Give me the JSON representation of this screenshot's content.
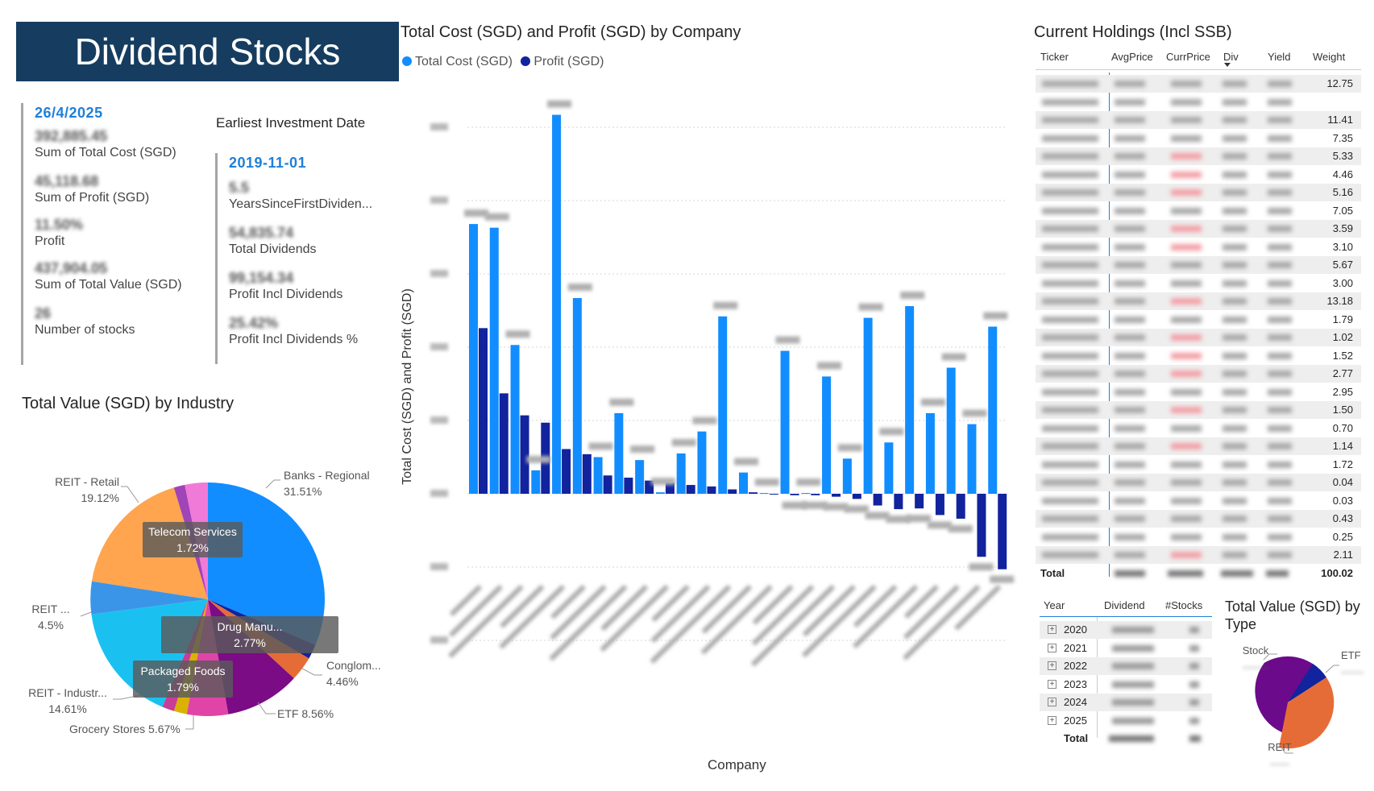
{
  "banner": {
    "title": "Dividend Stocks"
  },
  "kpis_left": {
    "date": "26/4/2025",
    "items": [
      {
        "value": "392,885.45",
        "label": "Sum of Total Cost (SGD)"
      },
      {
        "value": "45,118.68",
        "label": "Sum of Profit (SGD)"
      },
      {
        "value": "11.50%",
        "label": "Profit"
      },
      {
        "value": "437,904.05",
        "label": "Sum of Total Value (SGD)"
      },
      {
        "value": "26",
        "label": "Number of stocks"
      }
    ]
  },
  "kpis_right": {
    "header": "Earliest Investment Date",
    "date": "2019-11-01",
    "items": [
      {
        "value": "5.5",
        "label": "YearsSinceFirstDividen..."
      },
      {
        "value": "54,835.74",
        "label": "Total Dividends"
      },
      {
        "value": "99,154.34",
        "label": "Profit Incl Dividends"
      },
      {
        "value": "25.42%",
        "label": "Profit Incl Dividends %"
      }
    ]
  },
  "industry_pie": {
    "title": "Total Value (SGD) by Industry",
    "labels": {
      "banks": [
        "Banks - Regional",
        "31.51%"
      ],
      "reit_retail": [
        "REIT - Retail",
        "19.12%"
      ],
      "reit_other": [
        "REIT ...",
        "4.5%"
      ],
      "reit_indus": [
        "REIT - Industr...",
        "14.61%"
      ],
      "grocery": [
        "Grocery Stores 5.67%"
      ],
      "etf": [
        "ETF 8.56%"
      ],
      "conglom": [
        "Conglom...",
        "4.46%"
      ]
    },
    "tooltips": {
      "telecom": [
        "Telecom Services",
        "1.72%"
      ],
      "drug": [
        "Drug Manu...",
        "2.77%"
      ],
      "packaged": [
        "Packaged Foods",
        "1.79%"
      ]
    },
    "colors": {
      "banks": "#118dff",
      "reit_retail": "#ffa54f",
      "reit_other": "#3a95e8",
      "reit_indus": "#1ac1f0",
      "etf": "#7b0c86",
      "conglom": "#e66c37",
      "drug": "#12239e",
      "grocery": "#e044a7",
      "pinkish": "#f07ad8",
      "purple2": "#a044b7"
    }
  },
  "bar_chart": {
    "title": "Total Cost (SGD) and Profit (SGD) by Company",
    "legend": [
      "Total Cost (SGD)",
      "Profit (SGD)"
    ],
    "xlabel": "Company",
    "ylabel": "Total Cost (SGD) and Profit (SGD)",
    "colors": {
      "cost": "#118dff",
      "profit": "#12239e"
    }
  },
  "chart_data": {
    "type": "bar",
    "title": "Total Cost (SGD) and Profit (SGD) by Company",
    "xlabel": "Company",
    "ylabel": "Total Cost (SGD) and Profit (SGD)",
    "ylim": [
      -20,
      50
    ],
    "categories": [
      "C1",
      "C2",
      "C3",
      "C4",
      "C5",
      "C6",
      "C7",
      "C8",
      "C9",
      "C10",
      "C11",
      "C12",
      "C13",
      "C14",
      "C15",
      "C16",
      "C17",
      "C18",
      "C19",
      "C20",
      "C21",
      "C22",
      "C23",
      "C24",
      "C25",
      "C26"
    ],
    "series": [
      {
        "name": "Total Cost (SGD)",
        "values": [
          36.8,
          36.3,
          20.3,
          3.2,
          51.7,
          26.7,
          5.0,
          11.0,
          4.6,
          0.2,
          5.5,
          8.5,
          24.2,
          2.9,
          0.1,
          19.5,
          0.1,
          16.0,
          4.8,
          24.0,
          7.0,
          25.6,
          11.0,
          17.2,
          9.5,
          22.8
        ]
      },
      {
        "name": "Profit (SGD)",
        "values": [
          22.6,
          13.7,
          10.7,
          9.7,
          6.1,
          5.4,
          2.5,
          2.2,
          1.8,
          1.5,
          1.2,
          1.0,
          0.6,
          0.2,
          0.0,
          -0.2,
          -0.2,
          -0.4,
          -0.7,
          -1.6,
          -2.1,
          -2.0,
          -2.9,
          -3.4,
          -8.6,
          -10.3
        ]
      }
    ]
  },
  "holdings": {
    "title": "Current Holdings (Incl SSB)",
    "headers": [
      "Ticker",
      "AvgPrice",
      "CurrPrice",
      "Div",
      "Yield",
      "Weight"
    ],
    "weights": [
      "12.75",
      "",
      "11.41",
      "7.35",
      "5.33",
      "4.46",
      "5.16",
      "7.05",
      "3.59",
      "3.10",
      "5.67",
      "3.00",
      "13.18",
      "1.79",
      "1.02",
      "1.52",
      "2.77",
      "2.95",
      "1.50",
      "0.70",
      "1.14",
      "1.72",
      "0.04",
      "0.03",
      "0.43",
      "0.25",
      "2.11"
    ],
    "total_label": "Total",
    "total_weight": "100.02"
  },
  "dividends_table": {
    "headers": [
      "Year",
      "Dividend",
      "#Stocks"
    ],
    "years": [
      "2020",
      "2021",
      "2022",
      "2023",
      "2024",
      "2025"
    ],
    "total_label": "Total"
  },
  "type_pie": {
    "title": "Total Value (SGD) by Type",
    "labels": {
      "stock": "Stock",
      "etf": "ETF",
      "reit": "REIT"
    },
    "colors": {
      "stock": "#6b0a8a",
      "etf": "#12239e",
      "reit": "#e66c37"
    }
  }
}
